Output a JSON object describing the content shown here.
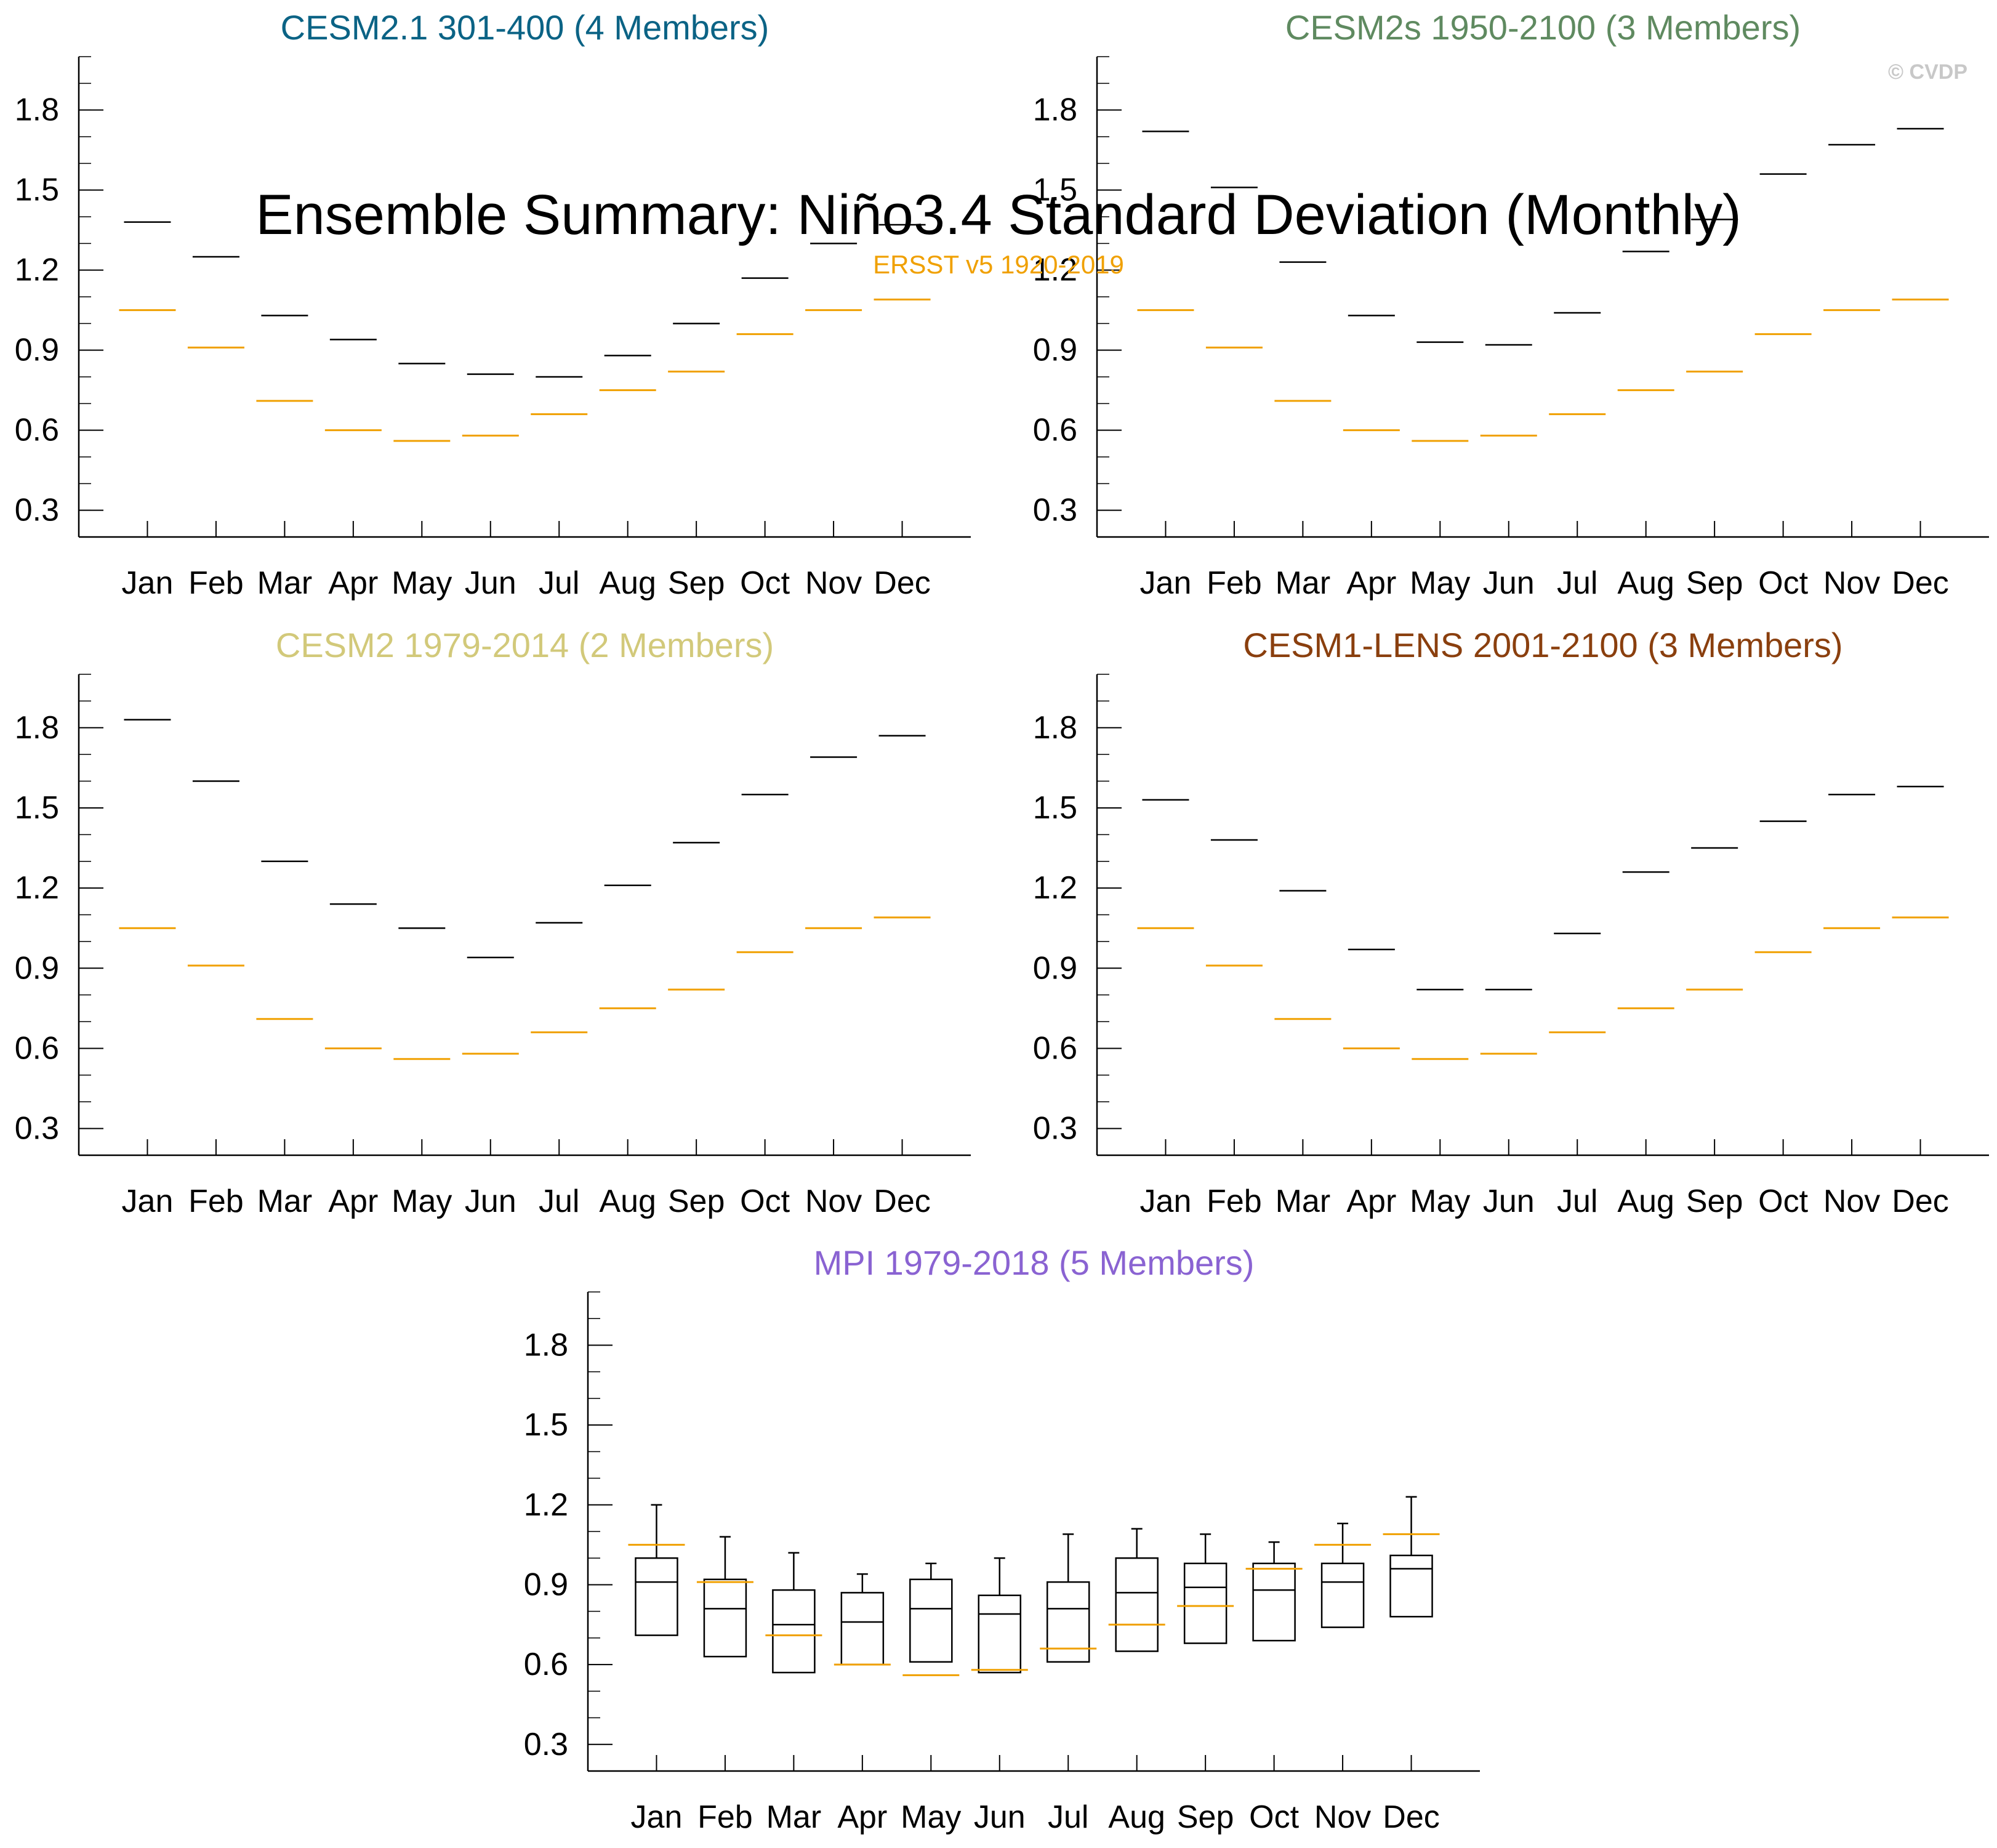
{
  "figure": {
    "title": "Ensemble Summary: Niño3.4 Standard Deviation (Monthly)",
    "obs_label": "ERSST v5 1920-2019",
    "watermark": "© CVDP",
    "colors": {
      "observation": "#f0a000",
      "model": "#000000",
      "watermark": "#c8c8c8"
    }
  },
  "chart_data": [
    {
      "type": "bar",
      "title": "CESM2.1 301-400 (4 Members)",
      "title_color": "#0b6385",
      "categories": [
        "Jan",
        "Feb",
        "Mar",
        "Apr",
        "May",
        "Jun",
        "Jul",
        "Aug",
        "Sep",
        "Oct",
        "Nov",
        "Dec"
      ],
      "yticks": [
        "0.3",
        "0.6",
        "0.9",
        "1.2",
        "1.5",
        "1.8"
      ],
      "ylim": [
        0.2,
        2.0
      ],
      "series": [
        {
          "name": "CESM2.1 301-400 ensemble",
          "values": [
            1.38,
            1.25,
            1.03,
            0.94,
            0.85,
            0.81,
            0.8,
            0.88,
            1.0,
            1.17,
            1.3,
            1.37
          ]
        },
        {
          "name": "ERSST v5 1920-2019",
          "values": [
            1.05,
            0.91,
            0.71,
            0.6,
            0.56,
            0.58,
            0.66,
            0.75,
            0.82,
            0.96,
            1.05,
            1.09
          ]
        }
      ]
    },
    {
      "type": "bar",
      "title": "CESM2s 1950-2100 (3 Members)",
      "title_color": "#5f8a60",
      "categories": [
        "Jan",
        "Feb",
        "Mar",
        "Apr",
        "May",
        "Jun",
        "Jul",
        "Aug",
        "Sep",
        "Oct",
        "Nov",
        "Dec"
      ],
      "yticks": [
        "0.3",
        "0.6",
        "0.9",
        "1.2",
        "1.5",
        "1.8"
      ],
      "ylim": [
        0.2,
        2.0
      ],
      "series": [
        {
          "name": "CESM2s 1950-2100 ensemble",
          "values": [
            1.72,
            1.51,
            1.23,
            1.03,
            0.93,
            0.92,
            1.04,
            1.27,
            1.39,
            1.56,
            1.67,
            1.73
          ]
        },
        {
          "name": "ERSST v5 1920-2019",
          "values": [
            1.05,
            0.91,
            0.71,
            0.6,
            0.56,
            0.58,
            0.66,
            0.75,
            0.82,
            0.96,
            1.05,
            1.09
          ]
        }
      ]
    },
    {
      "type": "bar",
      "title": "CESM2 1979-2014 (2 Members)",
      "title_color": "#d2c97a",
      "categories": [
        "Jan",
        "Feb",
        "Mar",
        "Apr",
        "May",
        "Jun",
        "Jul",
        "Aug",
        "Sep",
        "Oct",
        "Nov",
        "Dec"
      ],
      "yticks": [
        "0.3",
        "0.6",
        "0.9",
        "1.2",
        "1.5",
        "1.8"
      ],
      "ylim": [
        0.2,
        2.0
      ],
      "series": [
        {
          "name": "CESM2 1979-2014 ensemble",
          "values": [
            1.83,
            1.6,
            1.3,
            1.14,
            1.05,
            0.94,
            1.07,
            1.21,
            1.37,
            1.55,
            1.69,
            1.77
          ]
        },
        {
          "name": "ERSST v5 1920-2019",
          "values": [
            1.05,
            0.91,
            0.71,
            0.6,
            0.56,
            0.58,
            0.66,
            0.75,
            0.82,
            0.96,
            1.05,
            1.09
          ]
        }
      ]
    },
    {
      "type": "bar",
      "title": "CESM1-LENS 2001-2100 (3 Members)",
      "title_color": "#8a3f0e",
      "categories": [
        "Jan",
        "Feb",
        "Mar",
        "Apr",
        "May",
        "Jun",
        "Jul",
        "Aug",
        "Sep",
        "Oct",
        "Nov",
        "Dec"
      ],
      "yticks": [
        "0.3",
        "0.6",
        "0.9",
        "1.2",
        "1.5",
        "1.8"
      ],
      "ylim": [
        0.2,
        2.0
      ],
      "series": [
        {
          "name": "CESM1-LENS 2001-2100 ensemble",
          "values": [
            1.53,
            1.38,
            1.19,
            0.97,
            0.82,
            0.82,
            1.03,
            1.26,
            1.35,
            1.45,
            1.55,
            1.58
          ]
        },
        {
          "name": "ERSST v5 1920-2019",
          "values": [
            1.05,
            0.91,
            0.71,
            0.6,
            0.56,
            0.58,
            0.66,
            0.75,
            0.82,
            0.96,
            1.05,
            1.09
          ]
        }
      ]
    },
    {
      "type": "box",
      "title": "MPI 1979-2018 (5 Members)",
      "title_color": "#8a63d2",
      "categories": [
        "Jan",
        "Feb",
        "Mar",
        "Apr",
        "May",
        "Jun",
        "Jul",
        "Aug",
        "Sep",
        "Oct",
        "Nov",
        "Dec"
      ],
      "yticks": [
        "0.3",
        "0.6",
        "0.9",
        "1.2",
        "1.5",
        "1.8"
      ],
      "ylim": [
        0.2,
        2.0
      ],
      "boxes": [
        {
          "min": 0.71,
          "q1": 0.71,
          "median": 0.91,
          "q3": 1.0,
          "max": 1.2
        },
        {
          "min": 0.63,
          "q1": 0.63,
          "median": 0.81,
          "q3": 0.92,
          "max": 1.08
        },
        {
          "min": 0.57,
          "q1": 0.57,
          "median": 0.75,
          "q3": 0.88,
          "max": 1.02
        },
        {
          "min": 0.6,
          "q1": 0.6,
          "median": 0.76,
          "q3": 0.87,
          "max": 0.94
        },
        {
          "min": 0.61,
          "q1": 0.61,
          "median": 0.81,
          "q3": 0.92,
          "max": 0.98
        },
        {
          "min": 0.57,
          "q1": 0.57,
          "median": 0.79,
          "q3": 0.86,
          "max": 1.0
        },
        {
          "min": 0.61,
          "q1": 0.61,
          "median": 0.81,
          "q3": 0.91,
          "max": 1.09
        },
        {
          "min": 0.65,
          "q1": 0.65,
          "median": 0.87,
          "q3": 1.0,
          "max": 1.11
        },
        {
          "min": 0.68,
          "q1": 0.68,
          "median": 0.89,
          "q3": 0.98,
          "max": 1.09
        },
        {
          "min": 0.69,
          "q1": 0.69,
          "median": 0.88,
          "q3": 0.98,
          "max": 1.06
        },
        {
          "min": 0.74,
          "q1": 0.74,
          "median": 0.91,
          "q3": 0.98,
          "max": 1.13
        },
        {
          "min": 0.78,
          "q1": 0.78,
          "median": 0.96,
          "q3": 1.01,
          "max": 1.23
        }
      ],
      "series": [
        {
          "name": "ERSST v5 1920-2019",
          "values": [
            1.05,
            0.91,
            0.71,
            0.6,
            0.56,
            0.58,
            0.66,
            0.75,
            0.82,
            0.96,
            1.05,
            1.09
          ]
        }
      ]
    }
  ]
}
